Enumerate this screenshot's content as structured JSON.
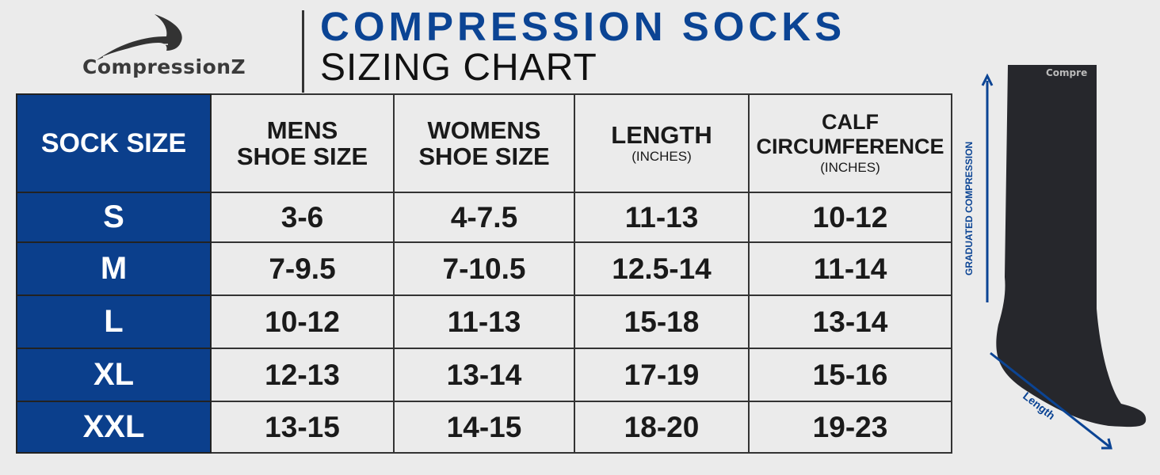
{
  "brand": {
    "name": "CompressionZ"
  },
  "header": {
    "title": "COMPRESSION SOCKS",
    "subtitle": "SIZING CHART"
  },
  "table": {
    "columns": [
      {
        "label": "SOCK SIZE"
      },
      {
        "label": "MENS",
        "label2": "SHOE SIZE"
      },
      {
        "label": "WOMENS",
        "label2": "SHOE SIZE"
      },
      {
        "label": "LENGTH",
        "unit": "(INCHES)"
      },
      {
        "label": "CALF",
        "label2": "CIRCUMFERENCE",
        "unit": "(INCHES)"
      }
    ],
    "rows": [
      {
        "size": "S",
        "mens": "3-6",
        "womens": "4-7.5",
        "length": "11-13",
        "calf": "10-12"
      },
      {
        "size": "M",
        "mens": "7-9.5",
        "womens": "7-10.5",
        "length": "12.5-14",
        "calf": "11-14"
      },
      {
        "size": "L",
        "mens": "10-12",
        "womens": "11-13",
        "length": "15-18",
        "calf": "13-14"
      },
      {
        "size": "XL",
        "mens": "12-13",
        "womens": "13-14",
        "length": "17-19",
        "calf": "15-16"
      },
      {
        "size": "XXL",
        "mens": "13-15",
        "womens": "14-15",
        "length": "18-20",
        "calf": "19-23"
      }
    ]
  },
  "illustration": {
    "vertical_label": "GRADUATED COMPRESSION",
    "diagonal_label": "Length",
    "sock_brand": "Compre"
  },
  "colors": {
    "brand_blue": "#0b3f8c",
    "background": "#ebebeb"
  }
}
